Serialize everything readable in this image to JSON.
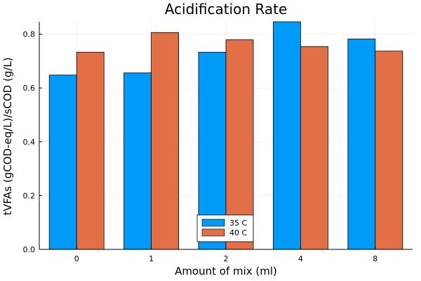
{
  "chart_data": {
    "type": "bar",
    "title": "Acidification Rate",
    "xlabel": "Amount of mix (ml)",
    "ylabel": "tVFAs (gCOD-eq/L)/sCOD (g/L)",
    "categories": [
      "0",
      "1",
      "2",
      "4",
      "8"
    ],
    "series": [
      {
        "name": "35 C",
        "color": "#009AF9",
        "values": [
          0.648,
          0.656,
          0.733,
          0.846,
          0.782
        ]
      },
      {
        "name": "40 C",
        "color": "#E26F46",
        "values": [
          0.733,
          0.806,
          0.779,
          0.754,
          0.737
        ]
      }
    ],
    "yticks": [
      "0.0",
      "0.2",
      "0.4",
      "0.6",
      "0.8"
    ],
    "ylim": [
      0,
      0.846
    ],
    "grid": true,
    "legend_position": "bottom-center"
  }
}
